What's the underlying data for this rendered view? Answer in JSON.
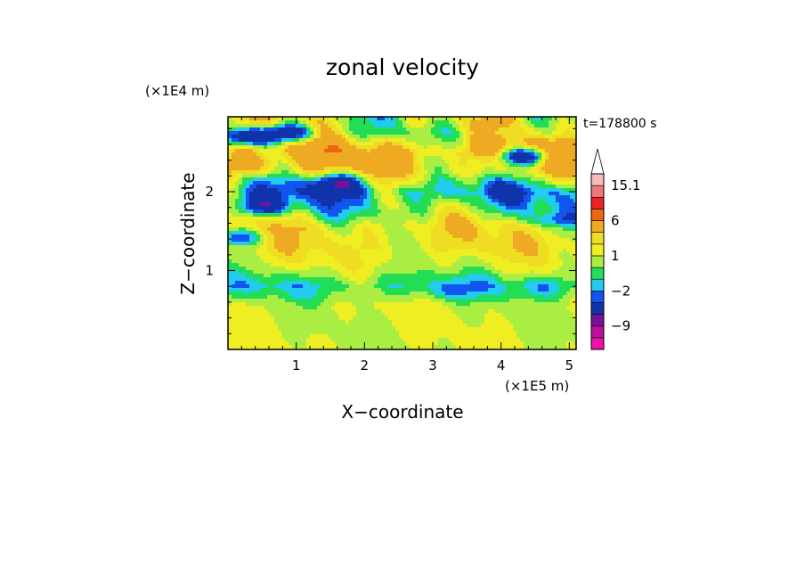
{
  "chart_data": {
    "type": "heatmap",
    "title": "zonal velocity",
    "xlabel": "X−coordinate",
    "ylabel": "Z−coordinate",
    "x_scale_label": "(×1E5 m)",
    "y_scale_label": "(×1E4 m)",
    "time_label": "t=178800 s",
    "xlim": [
      0,
      5.1
    ],
    "ylim": [
      0,
      2.95
    ],
    "x_ticks": [
      1,
      2,
      3,
      4,
      5
    ],
    "x_tick_labels": [
      "1",
      "2",
      "3",
      "4",
      "5"
    ],
    "y_ticks": [
      1,
      2
    ],
    "y_tick_labels": [
      "1",
      "2"
    ],
    "colorbar": {
      "levels": [
        -15,
        -12,
        -9,
        -6,
        -3,
        -2,
        -1,
        0,
        1,
        2,
        3,
        6,
        9,
        12,
        15.1
      ],
      "colors": [
        "#ee11aa",
        "#bb1199",
        "#771199",
        "#1133aa",
        "#1155ee",
        "#22ccee",
        "#22dd55",
        "#aaee44",
        "#eeee22",
        "#eedd22",
        "#eeaa22",
        "#ee6611",
        "#ee2222",
        "#ee7777",
        "#f5bbbb"
      ],
      "tick_labels": [
        {
          "value": 15.1,
          "label": "15.1"
        },
        {
          "value": 6,
          "label": "6"
        },
        {
          "value": 1,
          "label": "1"
        },
        {
          "value": -2,
          "label": "−2"
        },
        {
          "value": -9,
          "label": "−9"
        }
      ],
      "extend": "max"
    },
    "contour_bands": [
      {
        "z": 0.1,
        "level": 1,
        "amp": 0.6
      },
      {
        "z": 0.35,
        "level": 1,
        "amp": 0.4
      },
      {
        "z": 0.55,
        "level": 1,
        "amp": 1.0
      },
      {
        "z": 0.8,
        "level": -1,
        "amp": 1.5
      },
      {
        "z": 1.05,
        "level": 1,
        "amp": 1.2
      },
      {
        "z": 1.3,
        "level": 2,
        "amp": 1.5
      },
      {
        "z": 1.55,
        "level": 2,
        "amp": 2.0
      },
      {
        "z": 1.75,
        "level": 0,
        "amp": 2.5
      },
      {
        "z": 2.0,
        "level": -2,
        "amp": 3.0
      },
      {
        "z": 2.25,
        "level": 2,
        "amp": 2.5
      },
      {
        "z": 2.5,
        "level": 4,
        "amp": 3.0
      },
      {
        "z": 2.75,
        "level": 1,
        "amp": 3.0
      }
    ],
    "notable_features": [
      {
        "x": 0.3,
        "z": 2.7,
        "value": -6
      },
      {
        "x": 0.9,
        "z": 2.75,
        "value": -6
      },
      {
        "x": 4.35,
        "z": 2.45,
        "value": -6
      },
      {
        "x": 1.6,
        "z": 2.1,
        "value": -6
      },
      {
        "x": 0.5,
        "z": 1.83,
        "value": -6
      },
      {
        "x": 0.15,
        "z": 1.42,
        "value": -3
      },
      {
        "x": 0.35,
        "z": 2.35,
        "value": 6
      },
      {
        "x": 4.8,
        "z": 1.65,
        "value": -2
      },
      {
        "x": 3.2,
        "z": 0.75,
        "value": -2
      },
      {
        "x": 4.6,
        "z": 0.8,
        "value": -2
      }
    ]
  }
}
